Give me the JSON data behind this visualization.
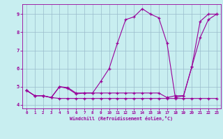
{
  "xlabel": "Windchill (Refroidissement éolien,°C)",
  "bg_color": "#c8eef0",
  "line_color": "#990099",
  "grid_color": "#99bbcc",
  "xlim": [
    -0.5,
    23.5
  ],
  "ylim": [
    3.8,
    9.55
  ],
  "xticks": [
    0,
    1,
    2,
    3,
    4,
    5,
    6,
    7,
    8,
    9,
    10,
    11,
    12,
    13,
    14,
    15,
    16,
    17,
    18,
    19,
    20,
    21,
    22,
    23
  ],
  "yticks": [
    4,
    5,
    6,
    7,
    8,
    9
  ],
  "s1_x": [
    0,
    1,
    2,
    3,
    4,
    5,
    6,
    7,
    8,
    9,
    10,
    11,
    12,
    13,
    14,
    15,
    16,
    17,
    18,
    19,
    20,
    21,
    22,
    23
  ],
  "s1_y": [
    4.8,
    4.5,
    4.5,
    4.4,
    4.35,
    4.35,
    4.35,
    4.35,
    4.35,
    4.35,
    4.35,
    4.35,
    4.35,
    4.35,
    4.35,
    4.35,
    4.35,
    4.35,
    4.35,
    4.35,
    4.35,
    4.35,
    4.35,
    4.35
  ],
  "s2_x": [
    0,
    1,
    2,
    3,
    4,
    5,
    6,
    7,
    8,
    9,
    10,
    11,
    12,
    13,
    14,
    15,
    16,
    17,
    18,
    19,
    20,
    21,
    22,
    23
  ],
  "s2_y": [
    4.8,
    4.5,
    4.5,
    4.4,
    5.0,
    4.9,
    4.6,
    4.65,
    4.65,
    5.3,
    6.0,
    7.4,
    8.7,
    8.85,
    9.3,
    9.0,
    8.8,
    7.4,
    4.4,
    4.5,
    6.1,
    8.6,
    9.0,
    9.0
  ],
  "s3_x": [
    0,
    1,
    2,
    3,
    4,
    5,
    6,
    7,
    8,
    9,
    10,
    11,
    12,
    13,
    14,
    15,
    16,
    17,
    18,
    19,
    20,
    21,
    22,
    23
  ],
  "s3_y": [
    4.8,
    4.5,
    4.5,
    4.4,
    5.0,
    4.95,
    4.65,
    4.65,
    4.65,
    4.65,
    4.65,
    4.65,
    4.65,
    4.65,
    4.65,
    4.65,
    4.65,
    4.4,
    4.5,
    4.5,
    6.1,
    7.7,
    8.7,
    9.0
  ]
}
